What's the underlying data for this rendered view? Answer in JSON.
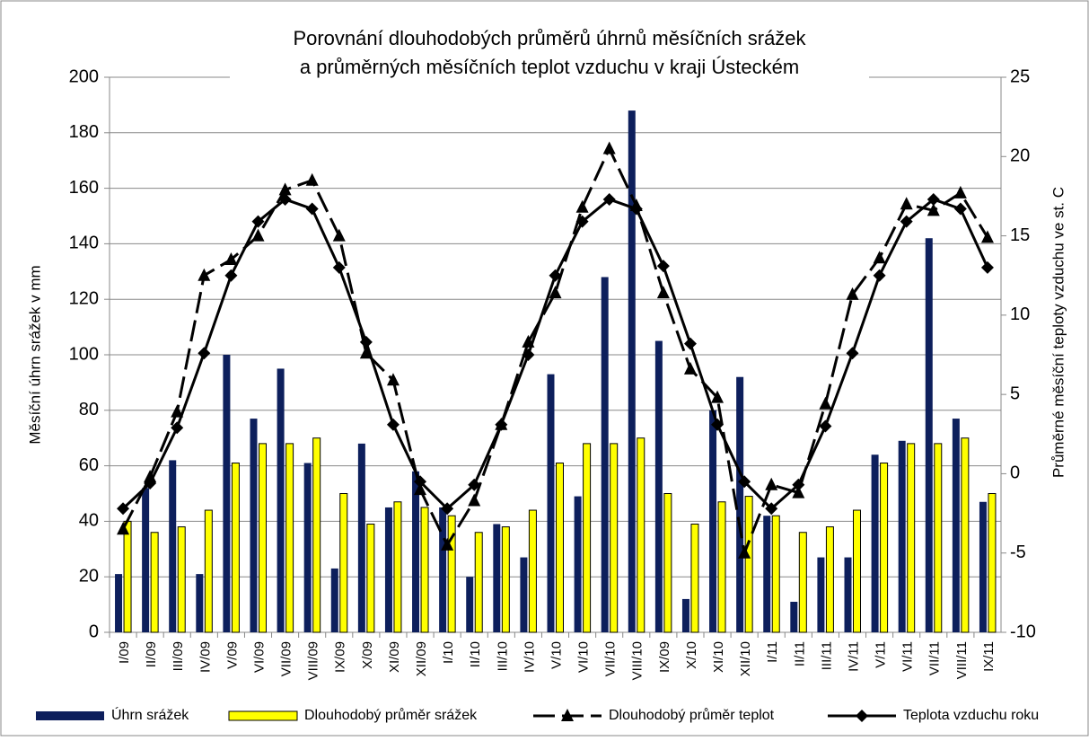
{
  "chart_data": {
    "type": "combo",
    "title": [
      "Porovnání dlouhodobých průměrů úhrnů měsíčních srážek",
      "a průměrných měsíčních teplot vzduchu v kraji Ústeckém"
    ],
    "ylabel": "Měsíční úhrn srážek v mm",
    "y2label": "Průměrné měsíční teploty vzduchu ve st. C",
    "categories": [
      "I/09",
      "II/09",
      "III/09",
      "IV/09",
      "V/09",
      "VI/09",
      "VII/09",
      "VIII/09",
      "IX/09",
      "X/09",
      "XI/09",
      "XII/09",
      "I/10",
      "II/10",
      "III/10",
      "IV/10",
      "V/10",
      "VI/10",
      "VII/10",
      "VIII/10",
      "IX/09",
      "X/10",
      "XI/10",
      "XII/10",
      "I/11",
      "II/11",
      "III/11",
      "IV/11",
      "V/11",
      "VI/11",
      "VII/11",
      "VIII/11",
      "IX/11"
    ],
    "ylim": [
      0,
      200
    ],
    "yticks": [
      0,
      20,
      40,
      60,
      80,
      100,
      120,
      140,
      160,
      180,
      200
    ],
    "y2lim": [
      -10,
      25
    ],
    "y2ticks": [
      -10,
      -5,
      0,
      5,
      10,
      15,
      20,
      25
    ],
    "grid": true,
    "series": [
      {
        "name": "Úhrn srážek",
        "type": "bar",
        "color": "#0d1f5c",
        "values": [
          21,
          52,
          62,
          21,
          100,
          77,
          95,
          61,
          23,
          68,
          45,
          58,
          45,
          20,
          39,
          27,
          93,
          49,
          128,
          188,
          105,
          12,
          80,
          92,
          42,
          11,
          27,
          27,
          64,
          69,
          142,
          77,
          47
        ]
      },
      {
        "name": "Dlouhodobý průměr srážek",
        "type": "bar",
        "color": "#ffff00",
        "values": [
          40,
          36,
          38,
          44,
          61,
          68,
          68,
          70,
          50,
          39,
          47,
          45,
          42,
          36,
          38,
          44,
          61,
          68,
          68,
          70,
          50,
          39,
          47,
          49,
          42,
          36,
          38,
          44,
          61,
          68,
          68,
          70,
          50
        ]
      },
      {
        "name": "Dlouhodobý průměr teplot",
        "type": "line",
        "axis": "y2",
        "color": "#000000",
        "dashed": true,
        "marker": "triangle",
        "values": [
          -3.5,
          -0.2,
          3.9,
          12.5,
          13.5,
          15.0,
          17.9,
          18.5,
          15.0,
          7.6,
          5.9,
          -1.0,
          -4.5,
          -1.7,
          3.1,
          8.3,
          11.4,
          16.8,
          20.5,
          16.9,
          11.4,
          6.6,
          4.8,
          -5.0,
          -0.7,
          -1.2,
          4.4,
          11.3,
          13.6,
          17.0,
          16.6,
          17.7,
          14.9
        ]
      },
      {
        "name": "Teplota vzduchu roku",
        "type": "line",
        "axis": "y2",
        "color": "#000000",
        "dashed": false,
        "marker": "diamond",
        "values": [
          -2.2,
          -0.6,
          2.9,
          7.6,
          12.5,
          15.9,
          17.3,
          16.7,
          13.0,
          8.3,
          3.1,
          -0.5,
          -2.2,
          -0.7,
          3.1,
          7.5,
          12.5,
          15.9,
          17.3,
          16.7,
          13.1,
          8.2,
          3.1,
          -0.5,
          -2.2,
          -0.7,
          3.0,
          7.6,
          12.5,
          15.9,
          17.3,
          16.7,
          13.0
        ]
      }
    ]
  }
}
